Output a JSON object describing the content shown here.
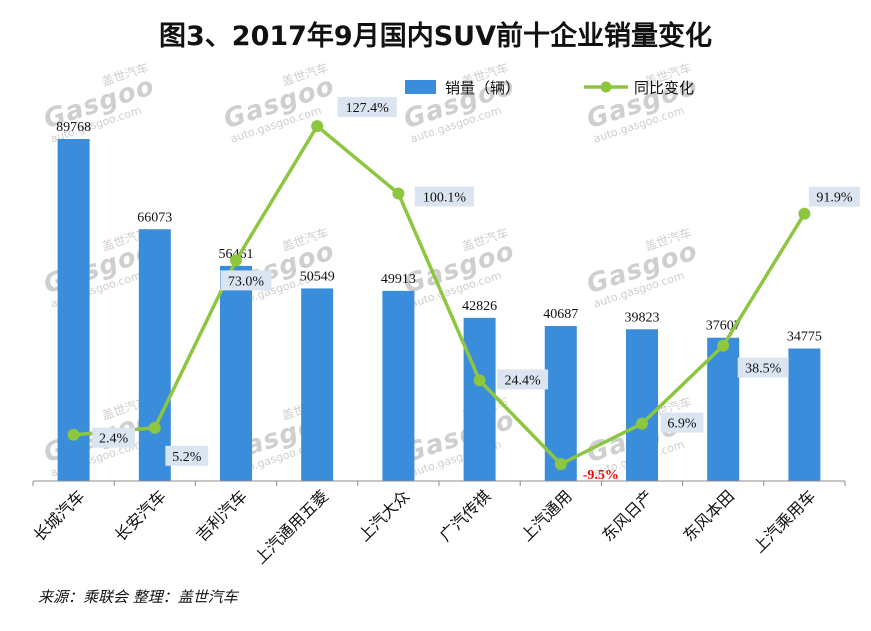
{
  "title": "图3、2017年9月国内SUV前十企业销量变化",
  "source": "来源：乘联会    整理：盖世汽车",
  "watermark": {
    "brand": "Gasgoo",
    "cn": "盖世汽车",
    "url": "auto.gasgoo.com"
  },
  "colors": {
    "bar": "#3a8ddb",
    "line": "#8dc63f",
    "label_box": "#dbe5f1",
    "negative": "#ff0000"
  },
  "chart_data": {
    "type": "bar",
    "categories": [
      "长城汽车",
      "长安汽车",
      "吉利汽车",
      "上汽通用五菱",
      "上汽大众",
      "广汽传祺",
      "上汽通用",
      "东风日产",
      "东风本田",
      "上汽乘用车"
    ],
    "series": [
      {
        "name": "销量（辆）",
        "type": "bar",
        "axis": "left",
        "values": [
          89768,
          66073,
          56461,
          50549,
          49913,
          42826,
          40687,
          39823,
          37607,
          34775
        ],
        "labels": [
          "89768",
          "66073",
          "56461",
          "50549",
          "49913",
          "42826",
          "40687",
          "39823",
          "37607",
          "34775"
        ]
      },
      {
        "name": "同比变化",
        "type": "line",
        "axis": "right",
        "unit": "%",
        "values": [
          2.4,
          5.2,
          73.0,
          127.4,
          100.1,
          24.4,
          -9.5,
          6.9,
          38.5,
          91.9
        ],
        "labels": [
          "2.4%",
          "5.2%",
          "73.0%",
          "127.4%",
          "100.1%",
          "24.4%",
          "-9.5%",
          "6.9%",
          "38.5%",
          "91.9%"
        ]
      }
    ],
    "ylim_left": [
      0,
      100000
    ],
    "ylim_right": [
      -20,
      140
    ],
    "legend": "top-center",
    "grid": false
  }
}
